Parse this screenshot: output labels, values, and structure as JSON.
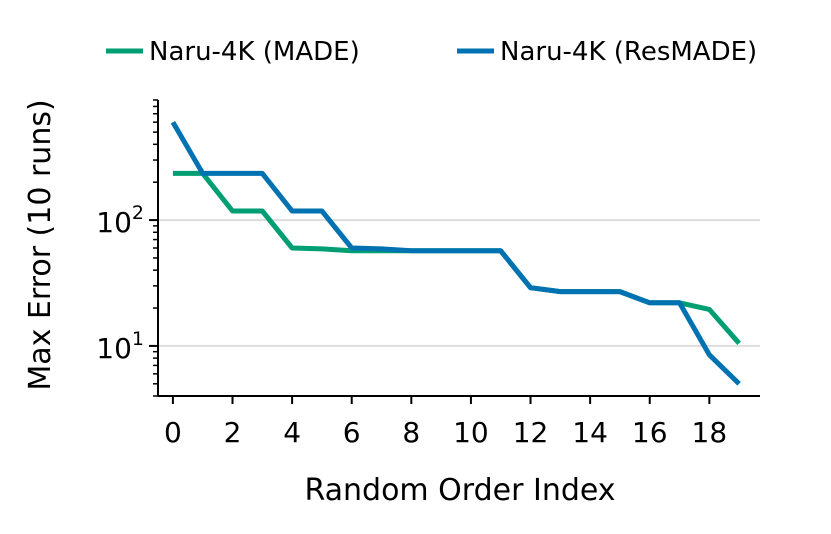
{
  "chart_data": {
    "type": "line",
    "title": "",
    "xlabel": "Random Order Index",
    "ylabel": "Max Error (10 runs)",
    "x": [
      0,
      1,
      2,
      3,
      4,
      5,
      6,
      7,
      8,
      9,
      10,
      11,
      12,
      13,
      14,
      15,
      16,
      17,
      18,
      19
    ],
    "xlim": [
      -0.5,
      19.7
    ],
    "xticks": [
      0,
      2,
      4,
      6,
      8,
      10,
      12,
      14,
      16,
      18
    ],
    "yscale": "log",
    "ylim": [
      4.0,
      900
    ],
    "yticks": [
      10,
      100
    ],
    "ytick_labels": [
      {
        "base": "10",
        "exp": "1"
      },
      {
        "base": "10",
        "exp": "2"
      }
    ],
    "grid": "horizontal major",
    "legend": "top",
    "series": [
      {
        "name": "Naru-4K (MADE)",
        "color": "#009E73",
        "values": [
          235,
          235,
          118,
          118,
          60,
          59,
          57,
          57,
          57,
          57,
          57,
          57,
          29,
          27,
          27,
          27,
          22,
          22,
          19.5,
          10.5
        ]
      },
      {
        "name": "Naru-4K (ResMADE)",
        "color": "#0072B2",
        "values": [
          600,
          235,
          235,
          235,
          118,
          118,
          60,
          59,
          57,
          57,
          57,
          57,
          29,
          27,
          27,
          27,
          22,
          22,
          8.5,
          5.0
        ]
      }
    ]
  }
}
